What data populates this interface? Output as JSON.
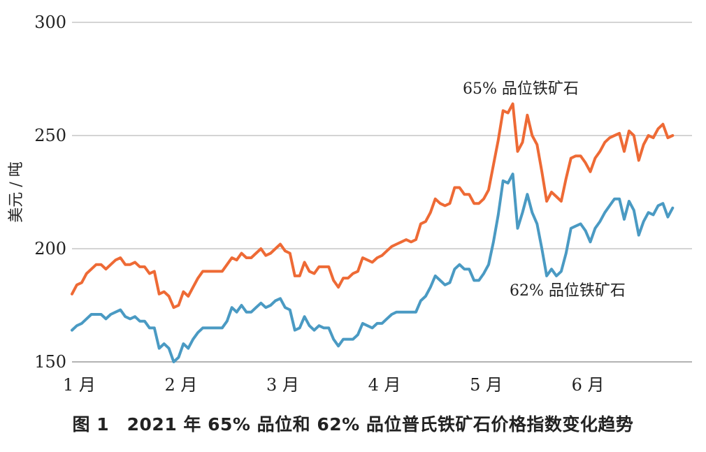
{
  "caption": "图 1　2021 年 65% 品位和 62% 品位普氏铁矿石价格指数变化趋势",
  "chart_data": {
    "type": "line",
    "title": "",
    "xlabel": "",
    "ylabel": "美元 / 吨",
    "ylim": [
      150,
      300
    ],
    "yticks": [
      150,
      200,
      250,
      300
    ],
    "xlim": [
      0,
      128
    ],
    "xticks": [
      {
        "x": 0,
        "label": "1 月"
      },
      {
        "x": 21,
        "label": "2 月"
      },
      {
        "x": 42,
        "label": "3 月"
      },
      {
        "x": 63,
        "label": "4 月"
      },
      {
        "x": 84,
        "label": "5 月"
      },
      {
        "x": 105,
        "label": "6 月"
      }
    ],
    "grid": "horizontal",
    "colors": {
      "s65": "#ee6a35",
      "s62": "#4a9ac3",
      "grid": "#d4d4d4",
      "axis": "#9a9a9a"
    },
    "series": [
      {
        "name": "65% 品位铁矿石",
        "values": [
          180,
          184,
          185,
          189,
          191,
          193,
          193,
          191,
          193,
          195,
          196,
          193,
          193,
          194,
          192,
          192,
          189,
          190,
          180,
          181,
          179,
          174,
          175,
          181,
          179,
          183,
          187,
          190,
          190,
          190,
          190,
          190,
          193,
          196,
          195,
          198,
          196,
          196,
          198,
          200,
          197,
          198,
          200,
          202,
          199,
          198,
          188,
          188,
          194,
          190,
          189,
          192,
          192,
          192,
          186,
          183,
          187,
          187,
          189,
          190,
          196,
          195,
          194,
          196,
          197,
          199,
          201,
          202,
          203,
          204,
          203,
          204,
          211,
          212,
          216,
          222,
          220,
          219,
          220,
          227,
          227,
          224,
          224,
          220,
          220,
          222,
          226,
          237,
          248,
          261,
          260,
          264,
          243,
          247,
          259,
          250,
          246,
          234,
          221,
          225,
          223,
          221,
          231,
          240,
          241,
          241,
          238,
          234,
          240,
          243,
          247,
          249,
          250,
          251,
          243,
          252,
          250,
          239,
          246,
          250,
          249,
          253,
          255,
          249,
          250
        ],
        "label": "65% 品位铁矿石"
      },
      {
        "name": "62% 品位铁矿石",
        "values": [
          164,
          166,
          167,
          169,
          171,
          171,
          171,
          169,
          171,
          172,
          173,
          170,
          169,
          170,
          168,
          168,
          165,
          165,
          156,
          158,
          156,
          150,
          152,
          158,
          156,
          160,
          163,
          165,
          165,
          165,
          165,
          165,
          168,
          174,
          172,
          175,
          172,
          172,
          174,
          176,
          174,
          175,
          177,
          178,
          174,
          173,
          164,
          165,
          170,
          166,
          164,
          166,
          165,
          165,
          160,
          157,
          160,
          160,
          160,
          162,
          167,
          166,
          165,
          167,
          167,
          169,
          171,
          172,
          172,
          172,
          172,
          172,
          177,
          179,
          183,
          188,
          186,
          184,
          185,
          191,
          193,
          191,
          191,
          186,
          186,
          189,
          193,
          203,
          215,
          230,
          229,
          233,
          209,
          216,
          224,
          216,
          211,
          200,
          188,
          191,
          188,
          190,
          198,
          209,
          210,
          211,
          208,
          203,
          209,
          212,
          216,
          219,
          222,
          222,
          213,
          221,
          217,
          206,
          212,
          216,
          215,
          219,
          220,
          214,
          218
        ],
        "label": "62% 品位铁矿石"
      }
    ]
  }
}
